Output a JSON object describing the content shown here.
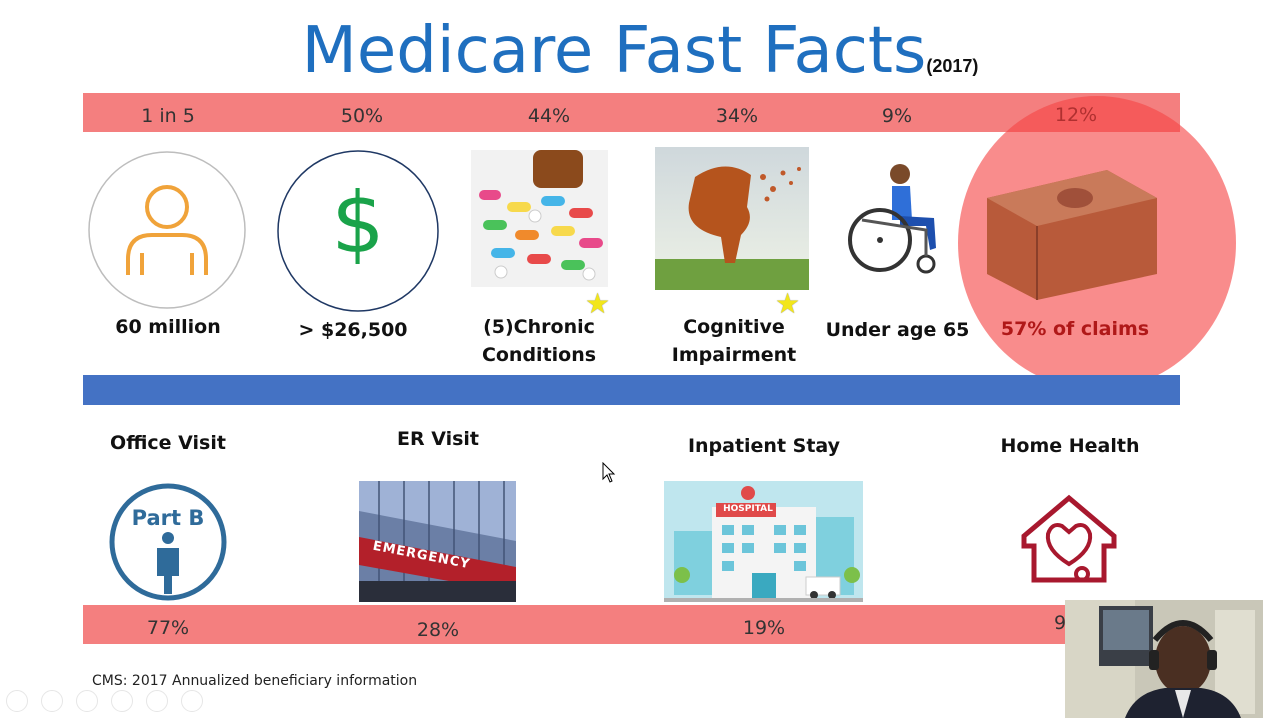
{
  "slide": {
    "title": "Medicare Fast Facts",
    "title_year": "(2017)",
    "top_stats": [
      "1 in 5",
      "50%",
      "44%",
      "34%",
      "9%",
      "12%"
    ],
    "top_labels": [
      [
        "60 million"
      ],
      [
        "> $26,500"
      ],
      [
        "(5)Chronic",
        "Conditions"
      ],
      [
        "Cognitive",
        "Impairment"
      ],
      [
        "Under age 65"
      ],
      [
        "57% of claims"
      ]
    ],
    "dollar_symbol": "$",
    "visit_labels": [
      "Office Visit",
      "ER Visit",
      "Inpatient Stay",
      "Home Health"
    ],
    "bottom_stats": [
      "77%",
      "28%",
      "19%",
      "9"
    ],
    "part_b_text": "Part B",
    "emergency_sign": "EMERGENCY",
    "hospital_sign": "HOSPITAL",
    "source": "CMS: 2017 Annualized beneficiary information"
  },
  "colors": {
    "title_blue": "#1f6fbf",
    "band_red": "#f47f7f",
    "band_blue": "#4472c4",
    "highlight_circle": "rgba(245,70,70,0.62)"
  },
  "icons": [
    "person-icon",
    "dollar-icon",
    "pills-image",
    "tree-head-image",
    "wheelchair-image",
    "money-stack-image",
    "star-icon",
    "part-b-icon",
    "emergency-image",
    "hospital-image",
    "home-health-icon",
    "mouse-cursor-icon",
    "webcam-video"
  ]
}
